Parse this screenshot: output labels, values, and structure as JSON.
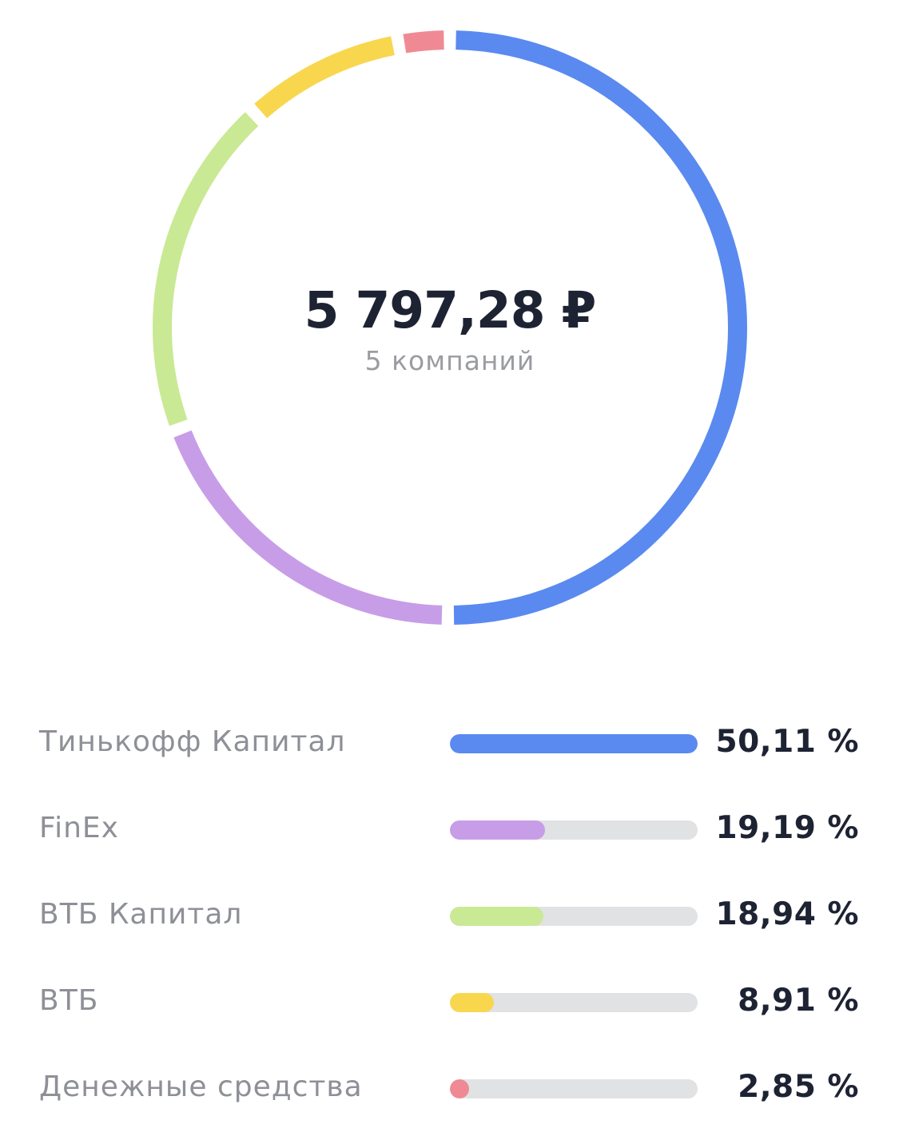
{
  "summary": {
    "total": "5 797,28 ₽",
    "subtitle": "5 компаний"
  },
  "chart_data": {
    "type": "pie",
    "categories": [
      "Тинькофф Капитал",
      "FinEx",
      "ВТБ Капитал",
      "ВТБ",
      "Денежные средства"
    ],
    "values": [
      50.11,
      19.19,
      18.94,
      8.91,
      2.85
    ],
    "colors": [
      "#5a8af0",
      "#c79de8",
      "#c9e994",
      "#f8d74e",
      "#ef8a94"
    ],
    "title": "",
    "style": "donut"
  },
  "legend": [
    {
      "name": "Тинькофф Капитал",
      "percent_label": "50,11 %",
      "fraction": 0.5011,
      "color": "#5a8af0"
    },
    {
      "name": "FinEx",
      "percent_label": "19,19 %",
      "fraction": 0.1919,
      "color": "#c79de8"
    },
    {
      "name": "ВТБ Капитал",
      "percent_label": "18,94 %",
      "fraction": 0.1894,
      "color": "#c9e994"
    },
    {
      "name": "ВТБ",
      "percent_label": "8,91 %",
      "fraction": 0.0891,
      "color": "#f8d74e"
    },
    {
      "name": "Денежные средства",
      "percent_label": "2,85 %",
      "fraction": 0.0285,
      "color": "#ef8a94"
    }
  ]
}
